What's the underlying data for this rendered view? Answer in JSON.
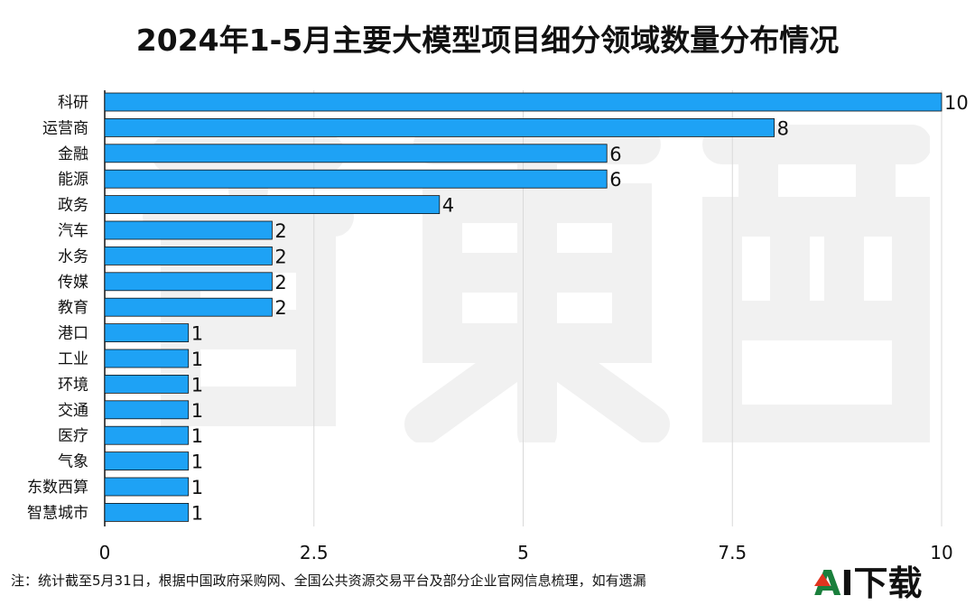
{
  "chart_data": {
    "type": "bar",
    "orientation": "horizontal",
    "title": "2024年1-5月主要大模型项目细分领域数量分布情况",
    "categories": [
      "科研",
      "运营商",
      "金融",
      "能源",
      "政务",
      "汽车",
      "水务",
      "传媒",
      "教育",
      "港口",
      "工业",
      "环境",
      "交通",
      "医疗",
      "气象",
      "东数西算",
      "智慧城市"
    ],
    "values": [
      10,
      8,
      6,
      6,
      4,
      2,
      2,
      2,
      2,
      1,
      1,
      1,
      1,
      1,
      1,
      1,
      1
    ],
    "xlim": [
      0,
      10
    ],
    "xticks": [
      0,
      2.5,
      5,
      7.5,
      10
    ],
    "xtick_labels": [
      "0",
      "2.5",
      "5",
      "7.5",
      "10"
    ],
    "grid": "vertical",
    "bar_color": "#1ea2f5",
    "grid_color": "#d9d9d9",
    "xlabel": "",
    "ylabel": ""
  },
  "footnote": "注：统计截至5月31日，根据中国政府采购网、全国公共资源交易平台及部分企业官网信息梳理，如有遗漏",
  "logo": {
    "a": "A",
    "rest": "I下载"
  },
  "colors": {
    "watermark": "#f1f1f1",
    "logo_green": "#1a7f3c",
    "logo_red": "#e0341f"
  }
}
